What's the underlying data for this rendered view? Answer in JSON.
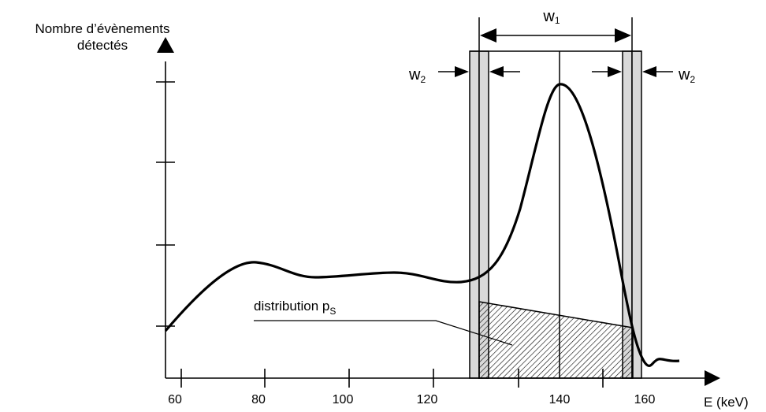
{
  "y_axis": {
    "title_line1": "Nombre d’évènements",
    "title_line2": "détectés"
  },
  "x_axis": {
    "title": "E (keV)",
    "ticks": [
      "60",
      "80",
      "100",
      "120",
      "140",
      "160"
    ]
  },
  "widths": {
    "w1": {
      "base": "w",
      "sub": "1"
    },
    "w2_left": {
      "base": "w",
      "sub": "2"
    },
    "w2_right": {
      "base": "w",
      "sub": "2"
    }
  },
  "distribution": {
    "label": "distribution p",
    "sub": "S"
  },
  "colors": {
    "stroke": "#000000",
    "band_fill": "#d9d9d9",
    "hatch": "#000000"
  }
}
